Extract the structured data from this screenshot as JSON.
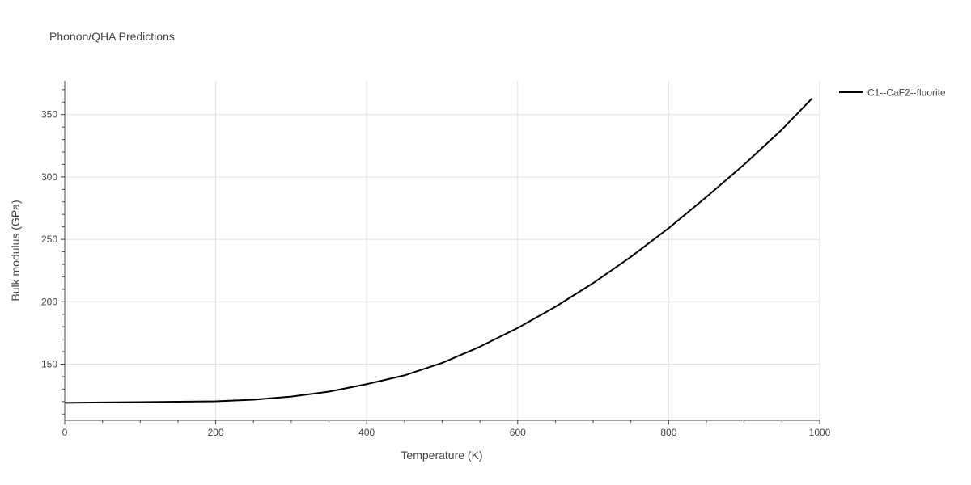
{
  "chart_data": {
    "type": "line",
    "title": "Phonon/QHA Predictions",
    "xlabel": "Temperature (K)",
    "ylabel": "Bulk modulus (GPa)",
    "xlim": [
      0,
      1000
    ],
    "ylim": [
      105,
      377
    ],
    "x_ticks": [
      0,
      200,
      400,
      600,
      800,
      1000
    ],
    "y_ticks": [
      150,
      200,
      250,
      300,
      350
    ],
    "grid": true,
    "legend_position": "top-right",
    "series": [
      {
        "name": "C1--CaF2--fluorite",
        "color": "#000000",
        "x": [
          0,
          50,
          100,
          150,
          200,
          250,
          300,
          350,
          400,
          450,
          500,
          550,
          600,
          650,
          700,
          750,
          800,
          850,
          900,
          950,
          990
        ],
        "y": [
          119,
          119.3,
          119.6,
          119.9,
          120.2,
          121.5,
          124,
          128,
          134,
          141,
          151,
          164,
          179,
          196,
          215,
          236,
          259,
          284,
          310,
          338,
          363
        ]
      }
    ]
  }
}
